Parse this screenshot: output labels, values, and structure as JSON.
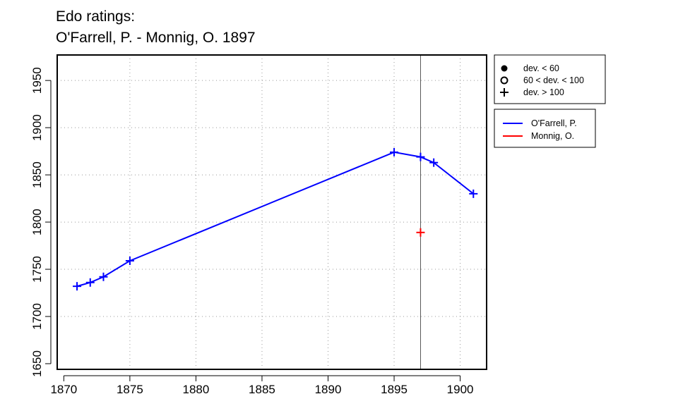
{
  "chart_data": {
    "type": "line",
    "title": "Edo ratings:",
    "subtitle": "O'Farrell, P. - Monnig, O. 1897",
    "xlabel": "",
    "ylabel": "",
    "xlim": [
      1869.5,
      1902
    ],
    "ylim": [
      1644,
      1977
    ],
    "xticks": [
      1870,
      1875,
      1880,
      1885,
      1890,
      1895,
      1900
    ],
    "yticks": [
      1650,
      1700,
      1750,
      1800,
      1850,
      1900,
      1950
    ],
    "grid": true,
    "marker_vline_x": 1897,
    "series": [
      {
        "name": "O'Farrell, P.",
        "color": "#0000ff",
        "points": [
          {
            "x": 1871,
            "y": 1732
          },
          {
            "x": 1872,
            "y": 1736
          },
          {
            "x": 1873,
            "y": 1742
          },
          {
            "x": 1875,
            "y": 1759
          },
          {
            "x": 1895,
            "y": 1874
          },
          {
            "x": 1897,
            "y": 1869
          },
          {
            "x": 1898,
            "y": 1863
          },
          {
            "x": 1901,
            "y": 1830
          }
        ]
      },
      {
        "name": "Monnig, O.",
        "color": "#ff0000",
        "points": [
          {
            "x": 1897,
            "y": 1789
          }
        ]
      }
    ],
    "marker_legend": [
      {
        "symbol": "filled-circle",
        "label": "dev. < 60"
      },
      {
        "symbol": "open-circle",
        "label": "60 < dev. < 100"
      },
      {
        "symbol": "plus",
        "label": "dev. > 100"
      }
    ],
    "legend_position": "right"
  }
}
